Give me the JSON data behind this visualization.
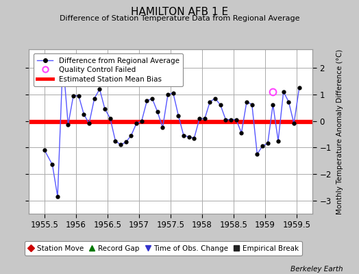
{
  "title": "HAMILTON AFB 1 E",
  "subtitle": "Difference of Station Temperature Data from Regional Average",
  "ylabel": "Monthly Temperature Anomaly Difference (°C)",
  "xlabel_credit": "Berkeley Earth",
  "bias_value": -0.03,
  "xlim": [
    1955.25,
    1959.75
  ],
  "ylim": [
    -3.5,
    2.7
  ],
  "yticks": [
    -3,
    -2,
    -1,
    0,
    1,
    2
  ],
  "xticks": [
    1955.5,
    1956.0,
    1956.5,
    1957.0,
    1957.5,
    1958.0,
    1958.5,
    1959.0,
    1959.5
  ],
  "xtick_labels": [
    "1955.5",
    "1956",
    "1956.5",
    "1957",
    "1957.5",
    "1958",
    "1958.5",
    "1959",
    "1959.5"
  ],
  "line_color": "#5555ff",
  "line_marker_color": "#000000",
  "bias_color": "#ff0000",
  "qc_color": "#ff44ff",
  "background_color": "#c8c8c8",
  "plot_bg_color": "#ffffff",
  "grid_color": "#aaaaaa",
  "x_data": [
    1955.5,
    1955.625,
    1955.708,
    1955.792,
    1955.875,
    1955.958,
    1956.042,
    1956.125,
    1956.208,
    1956.292,
    1956.375,
    1956.458,
    1956.542,
    1956.625,
    1956.708,
    1956.792,
    1956.875,
    1956.958,
    1957.042,
    1957.125,
    1957.208,
    1957.292,
    1957.375,
    1957.458,
    1957.542,
    1957.625,
    1957.708,
    1957.792,
    1957.875,
    1957.958,
    1958.042,
    1958.125,
    1958.208,
    1958.292,
    1958.375,
    1958.458,
    1958.542,
    1958.625,
    1958.708,
    1958.792,
    1958.875,
    1958.958,
    1959.042,
    1959.125,
    1959.208,
    1959.292,
    1959.375,
    1959.458,
    1959.542
  ],
  "y_data": [
    -1.1,
    -1.65,
    -2.85,
    2.3,
    -0.15,
    0.95,
    0.95,
    0.25,
    -0.1,
    0.85,
    1.2,
    0.45,
    0.1,
    -0.75,
    -0.9,
    -0.8,
    -0.55,
    -0.1,
    0.0,
    0.75,
    0.85,
    0.35,
    -0.25,
    1.0,
    1.05,
    0.2,
    -0.55,
    -0.6,
    -0.65,
    0.08,
    0.08,
    0.72,
    0.85,
    0.6,
    0.05,
    0.05,
    0.05,
    -0.45,
    0.72,
    0.62,
    -1.25,
    -0.95,
    -0.85,
    0.62,
    -0.75,
    1.1,
    0.72,
    -0.1,
    1.25
  ],
  "qc_failed_x": [
    1959.125
  ],
  "qc_failed_y": [
    1.1
  ],
  "legend_items": [
    {
      "label": "Difference from Regional Average",
      "type": "line",
      "color": "#5555ff",
      "marker": "o",
      "marker_color": "#000000"
    },
    {
      "label": "Quality Control Failed",
      "type": "marker",
      "color": "#ff44ff",
      "marker": "o"
    },
    {
      "label": "Estimated Station Mean Bias",
      "type": "line",
      "color": "#ff0000"
    }
  ],
  "bottom_legend": [
    {
      "label": "Station Move",
      "marker": "D",
      "color": "#cc0000"
    },
    {
      "label": "Record Gap",
      "marker": "^",
      "color": "#007700"
    },
    {
      "label": "Time of Obs. Change",
      "marker": "v",
      "color": "#3333cc"
    },
    {
      "label": "Empirical Break",
      "marker": "s",
      "color": "#222222"
    }
  ]
}
